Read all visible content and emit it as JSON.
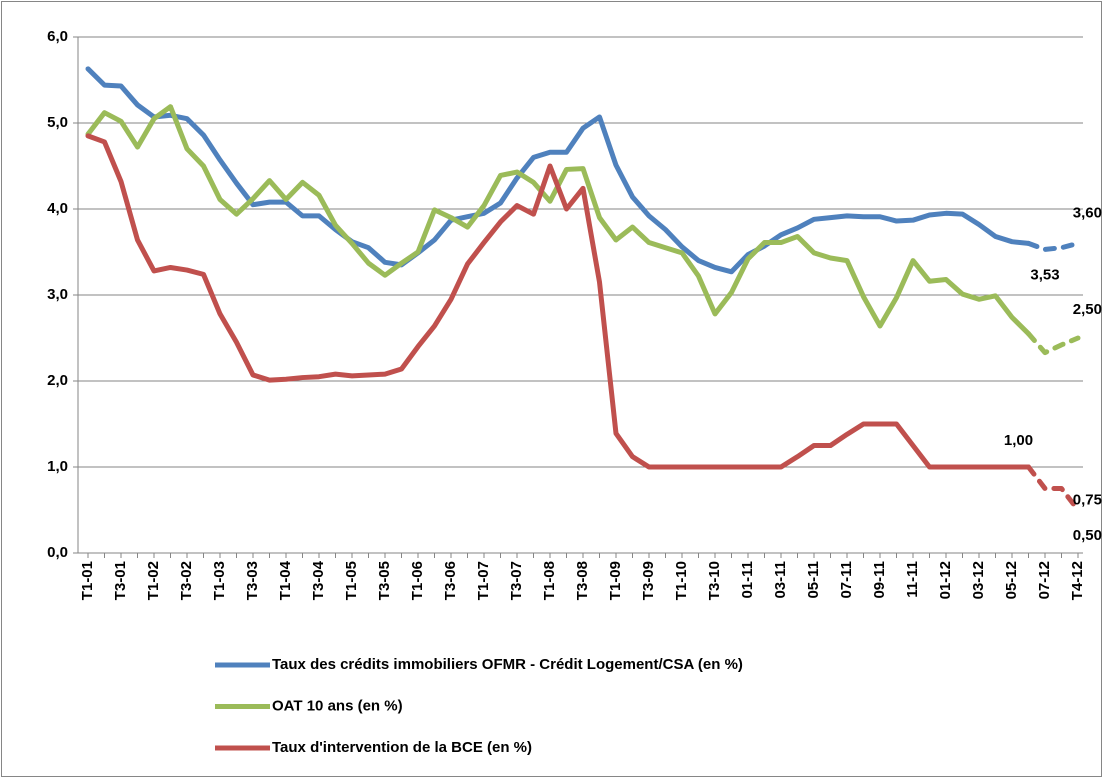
{
  "chart_data": {
    "type": "line",
    "categories": [
      "T1-01",
      null,
      "T3-01",
      null,
      "T1-02",
      null,
      "T3-02",
      null,
      "T1-03",
      null,
      "T3-03",
      null,
      "T1-04",
      null,
      "T3-04",
      null,
      "T1-05",
      null,
      "T3-05",
      null,
      "T1-06",
      null,
      "T3-06",
      null,
      "T1-07",
      null,
      "T3-07",
      null,
      "T1-08",
      null,
      "T3-08",
      null,
      "T1-09",
      null,
      "T3-09",
      null,
      "T1-10",
      null,
      "T3-10",
      null,
      "01-11",
      null,
      "03-11",
      null,
      "05-11",
      null,
      "07-11",
      null,
      "09-11",
      null,
      "11-11",
      null,
      "01-12",
      null,
      "03-12",
      null,
      "05-12",
      null,
      "07-12",
      null,
      "T4-12"
    ],
    "ylim": [
      0,
      6
    ],
    "yticks": [
      {
        "value": 0,
        "label": "0,0"
      },
      {
        "value": 1,
        "label": "1,0"
      },
      {
        "value": 2,
        "label": "2,0"
      },
      {
        "value": 3,
        "label": "3,0"
      },
      {
        "value": 4,
        "label": "4,0"
      },
      {
        "value": 5,
        "label": "5,0"
      },
      {
        "value": 6,
        "label": "6,0"
      }
    ],
    "grid": true,
    "dashed_from": 57,
    "series": [
      {
        "name": "Taux des crédits immobiliers OFMR - Crédit Logement/CSA (en %)",
        "color": "#4f81bd",
        "values": [
          5.63,
          5.44,
          5.43,
          5.21,
          5.07,
          5.09,
          5.05,
          4.86,
          4.57,
          4.3,
          4.05,
          4.08,
          4.08,
          3.92,
          3.92,
          3.76,
          3.62,
          3.55,
          3.38,
          3.35,
          3.49,
          3.64,
          3.87,
          3.91,
          3.95,
          4.07,
          4.36,
          4.6,
          4.66,
          4.66,
          4.94,
          5.07,
          4.51,
          4.14,
          3.92,
          3.76,
          3.56,
          3.4,
          3.32,
          3.27,
          3.47,
          3.57,
          3.7,
          3.78,
          3.88,
          3.9,
          3.92,
          3.91,
          3.91,
          3.86,
          3.87,
          3.93,
          3.95,
          3.94,
          3.82,
          3.68,
          3.62,
          3.6,
          3.53,
          3.55,
          3.6
        ],
        "value_labels": [
          null,
          null,
          null,
          null,
          null,
          null,
          null,
          null,
          null,
          null,
          null,
          null,
          null,
          null,
          null,
          null,
          null,
          null,
          null,
          null,
          null,
          null,
          null,
          null,
          null,
          null,
          null,
          null,
          null,
          null,
          null,
          null,
          null,
          null,
          null,
          null,
          null,
          null,
          null,
          null,
          null,
          null,
          null,
          null,
          null,
          null,
          null,
          null,
          null,
          null,
          null,
          null,
          null,
          null,
          null,
          null,
          null,
          null,
          "3,53",
          null,
          "3,60"
        ]
      },
      {
        "name": "OAT 10 ans (en %)",
        "color": "#9bbb59",
        "values": [
          4.87,
          5.12,
          5.02,
          4.72,
          5.05,
          5.19,
          4.7,
          4.5,
          4.11,
          3.94,
          4.12,
          4.33,
          4.11,
          4.31,
          4.16,
          3.81,
          3.6,
          3.37,
          3.23,
          3.37,
          3.5,
          3.99,
          3.9,
          3.79,
          4.04,
          4.39,
          4.43,
          4.31,
          4.09,
          4.46,
          4.47,
          3.9,
          3.64,
          3.79,
          3.61,
          3.55,
          3.49,
          3.22,
          2.78,
          3.03,
          3.42,
          3.61,
          3.61,
          3.68,
          3.49,
          3.43,
          3.4,
          2.98,
          2.64,
          2.97,
          3.4,
          3.16,
          3.18,
          3.01,
          2.95,
          2.99,
          2.74,
          2.55,
          2.33,
          2.42,
          2.5
        ],
        "value_labels": [
          null,
          null,
          null,
          null,
          null,
          null,
          null,
          null,
          null,
          null,
          null,
          null,
          null,
          null,
          null,
          null,
          null,
          null,
          null,
          null,
          null,
          null,
          null,
          null,
          null,
          null,
          null,
          null,
          null,
          null,
          null,
          null,
          null,
          null,
          null,
          null,
          null,
          null,
          null,
          null,
          null,
          null,
          null,
          null,
          null,
          null,
          null,
          null,
          null,
          null,
          null,
          null,
          null,
          null,
          null,
          null,
          null,
          null,
          null,
          null,
          "2,50"
        ]
      },
      {
        "name": "Taux d'intervention de la BCE (en %)",
        "color": "#c0504d",
        "values": [
          4.85,
          4.78,
          4.32,
          3.64,
          3.28,
          3.32,
          3.29,
          3.24,
          2.78,
          2.45,
          2.07,
          2.01,
          2.02,
          2.04,
          2.05,
          2.08,
          2.06,
          2.07,
          2.08,
          2.14,
          2.4,
          2.64,
          2.95,
          3.36,
          3.61,
          3.85,
          4.04,
          3.94,
          4.5,
          4.0,
          4.24,
          3.15,
          1.39,
          1.12,
          1.0,
          1.0,
          1.0,
          1.0,
          1.0,
          1.0,
          1.0,
          1.0,
          1.0,
          1.12,
          1.25,
          1.25,
          1.38,
          1.5,
          1.5,
          1.5,
          1.25,
          1.0,
          1.0,
          1.0,
          1.0,
          1.0,
          1.0,
          1.0,
          0.75,
          0.75,
          0.5
        ],
        "value_labels": [
          null,
          null,
          null,
          null,
          null,
          null,
          null,
          null,
          null,
          null,
          null,
          null,
          null,
          null,
          null,
          null,
          null,
          null,
          null,
          null,
          null,
          null,
          null,
          null,
          null,
          null,
          null,
          null,
          null,
          null,
          null,
          null,
          null,
          null,
          null,
          null,
          null,
          null,
          null,
          null,
          null,
          null,
          null,
          null,
          null,
          null,
          null,
          null,
          null,
          null,
          null,
          null,
          null,
          null,
          null,
          null,
          null,
          "1,00",
          null,
          "0,75",
          "0,50"
        ]
      }
    ]
  }
}
